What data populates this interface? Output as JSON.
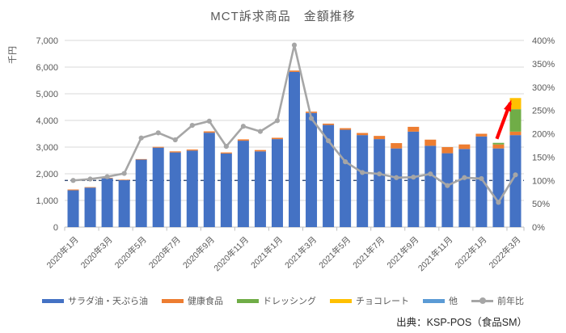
{
  "chart": {
    "title": "MCT訴求商品　金額推移"
  },
  "source": "出典：KSP-POS（食品SM）",
  "legend": {
    "items": [
      {
        "label": "サラダ油・天ぷら油",
        "color": "#4472C4"
      },
      {
        "label": "健康食品",
        "color": "#ED7D31"
      },
      {
        "label": "ドレッシング",
        "color": "#70AD47"
      },
      {
        "label": "チョコレート",
        "color": "#FFC000"
      },
      {
        "label": "他",
        "color": "#5B9BD5"
      },
      {
        "label": "前年比",
        "color": "#A6A6A6"
      }
    ]
  },
  "chart_data": {
    "type": "bar",
    "subtype": "stacked-bars-with-line-combo",
    "title": "MCT訴求商品　金額推移",
    "categories": [
      "2020年1月",
      "2020年2月",
      "2020年3月",
      "2020年4月",
      "2020年5月",
      "2020年6月",
      "2020年7月",
      "2020年8月",
      "2020年9月",
      "2020年10月",
      "2020年11月",
      "2020年12月",
      "2021年1月",
      "2021年2月",
      "2021年3月",
      "2021年4月",
      "2021年5月",
      "2021年6月",
      "2021年7月",
      "2021年8月",
      "2021年9月",
      "2021年10月",
      "2021年11月",
      "2021年12月",
      "2022年1月",
      "2022年2月",
      "2022年3月"
    ],
    "x_tick_label_interval": 2,
    "series": [
      {
        "name": "サラダ油・天ぷら油",
        "color": "#4472C4",
        "values": [
          1380,
          1480,
          1830,
          1760,
          2530,
          2980,
          2800,
          2870,
          3540,
          2760,
          3240,
          2840,
          3300,
          5820,
          4280,
          3830,
          3650,
          3450,
          3300,
          2950,
          3580,
          3050,
          2770,
          2930,
          3400,
          2950,
          3450
        ]
      },
      {
        "name": "健康食品",
        "color": "#ED7D31",
        "values": [
          30,
          20,
          20,
          20,
          20,
          30,
          40,
          40,
          50,
          40,
          50,
          50,
          50,
          50,
          50,
          50,
          60,
          80,
          120,
          200,
          180,
          230,
          230,
          170,
          100,
          150,
          130
        ]
      },
      {
        "name": "ドレッシング",
        "color": "#70AD47",
        "values": [
          0,
          0,
          0,
          0,
          0,
          0,
          0,
          0,
          0,
          0,
          0,
          0,
          0,
          0,
          0,
          0,
          0,
          0,
          0,
          0,
          0,
          0,
          0,
          0,
          0,
          60,
          840
        ]
      },
      {
        "name": "チョコレート",
        "color": "#FFC000",
        "values": [
          0,
          0,
          0,
          0,
          0,
          0,
          0,
          0,
          0,
          0,
          0,
          0,
          0,
          0,
          0,
          0,
          0,
          0,
          0,
          0,
          0,
          0,
          0,
          0,
          0,
          0,
          420
        ]
      },
      {
        "name": "他",
        "color": "#5B9BD5",
        "values": [
          0,
          0,
          0,
          0,
          0,
          0,
          0,
          0,
          0,
          0,
          0,
          0,
          0,
          0,
          0,
          0,
          0,
          0,
          0,
          0,
          0,
          0,
          0,
          0,
          0,
          0,
          0
        ]
      }
    ],
    "line_series": {
      "name": "前年比",
      "color": "#A6A6A6",
      "axis": "right",
      "values_pct": [
        100,
        103,
        108,
        115,
        191,
        202,
        187,
        218,
        227,
        173,
        216,
        205,
        228,
        390,
        233,
        185,
        140,
        117,
        114,
        106,
        107,
        114,
        89,
        106,
        104,
        53,
        112
      ]
    },
    "y_left": {
      "axis_title": "千円",
      "min": 0,
      "max": 7000,
      "step": 1000,
      "tick_labels": [
        "0",
        "1,000",
        "2,000",
        "3,000",
        "4,000",
        "5,000",
        "6,000",
        "7,000"
      ]
    },
    "y_right": {
      "min": 0,
      "max": 400,
      "step": 50,
      "tick_labels": [
        "0%",
        "50%",
        "100%",
        "150%",
        "200%",
        "250%",
        "300%",
        "350%",
        "400%"
      ]
    },
    "reference_line": {
      "value_pct": 100,
      "color": "#1F3864",
      "style": "dashed"
    },
    "annotation_arrow": {
      "color": "#FF0000",
      "from_category_index": 25,
      "to_category_index": 26
    },
    "grid": {
      "color": "#D9D9D9",
      "axis_color": "#BFBFBF"
    },
    "text_color": "#595959"
  }
}
